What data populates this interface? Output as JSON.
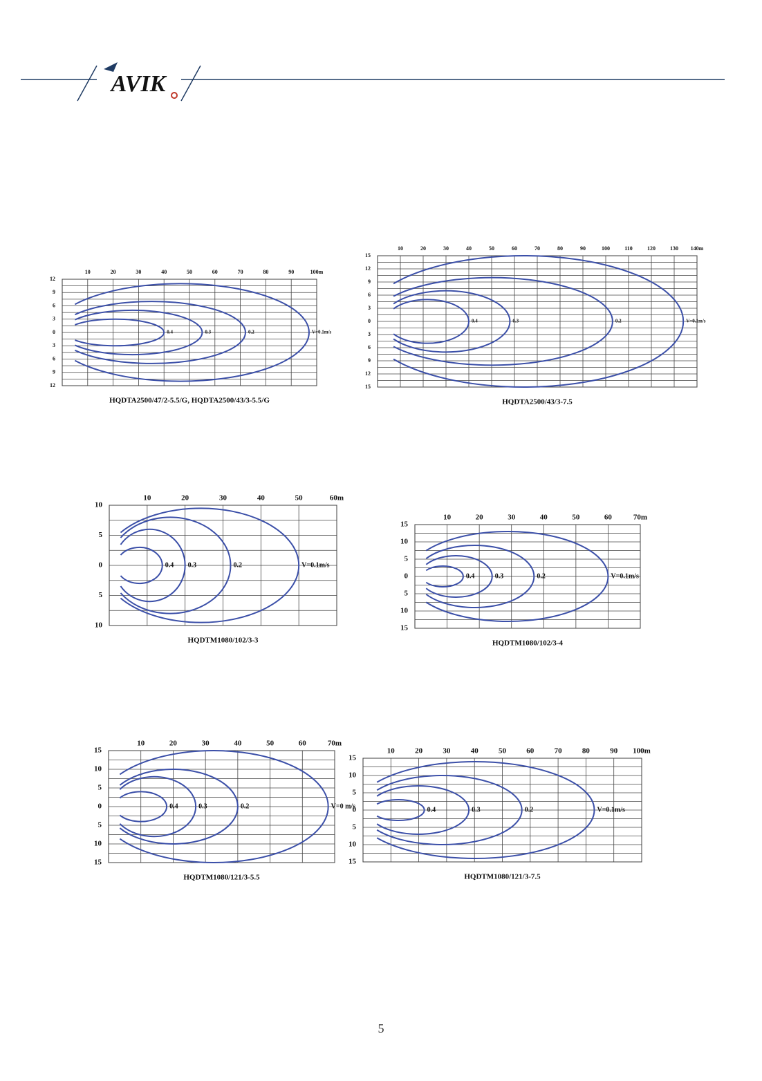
{
  "header": {
    "logo": "AVIK"
  },
  "charts": [
    {
      "caption": "HQDTA2500/47/2-5.5/G, HQDTA2500/43/3-5.5/G",
      "xlim": [
        0,
        100
      ],
      "ylim": [
        -12,
        12
      ],
      "xticks": [
        10,
        20,
        30,
        40,
        50,
        60,
        70,
        80,
        90,
        {
          "value": 100,
          "label": "100m"
        }
      ],
      "yticks": [
        12,
        9,
        6,
        3,
        0,
        {
          "value": -3,
          "label": "3"
        },
        {
          "value": -6,
          "label": "6"
        },
        {
          "value": -9,
          "label": "9"
        },
        {
          "value": -12,
          "label": "12"
        }
      ],
      "contours": [
        {
          "label": "0.4",
          "reach": 40,
          "spread": 3
        },
        {
          "label": "0.3",
          "reach": 55,
          "spread": 5
        },
        {
          "label": "0.2",
          "reach": 72,
          "spread": 7
        },
        {
          "label": "V=0.1m/s",
          "reach": 97,
          "spread": 11
        }
      ]
    },
    {
      "caption": "HQDTA2500/43/3-7.5",
      "xlim": [
        0,
        140
      ],
      "ylim": [
        -15,
        15
      ],
      "xticks": [
        10,
        20,
        30,
        40,
        50,
        60,
        70,
        80,
        90,
        100,
        110,
        120,
        130,
        {
          "value": 140,
          "label": "140m"
        }
      ],
      "yticks": [
        15,
        12,
        9,
        6,
        3,
        0,
        {
          "value": -3,
          "label": "3"
        },
        {
          "value": -6,
          "label": "6"
        },
        {
          "value": -9,
          "label": "9"
        },
        {
          "value": -12,
          "label": "12"
        },
        {
          "value": -15,
          "label": "15"
        }
      ],
      "contours": [
        {
          "label": "0.4",
          "reach": 40,
          "spread": 5
        },
        {
          "label": "0.3",
          "reach": 58,
          "spread": 7
        },
        {
          "label": "0.2",
          "reach": 103,
          "spread": 10
        },
        {
          "label": "V=0.1m/s",
          "reach": 134,
          "spread": 15
        }
      ]
    },
    {
      "caption": "HQDTM1080/102/3-3",
      "xlim": [
        0,
        60
      ],
      "ylim": [
        -10,
        10
      ],
      "xticks": [
        10,
        20,
        30,
        40,
        50,
        {
          "value": 60,
          "label": "60m"
        }
      ],
      "yticks": [
        10,
        5,
        0,
        {
          "value": -5,
          "label": "5"
        },
        {
          "value": -10,
          "label": "10"
        }
      ],
      "contours": [
        {
          "label": "0.4",
          "reach": 14,
          "spread": 3
        },
        {
          "label": "0.3",
          "reach": 20,
          "spread": 6
        },
        {
          "label": "0.2",
          "reach": 32,
          "spread": 8
        },
        {
          "label": "V=0.1m/s",
          "reach": 50,
          "spread": 9.5
        }
      ]
    },
    {
      "caption": "HQDTM1080/102/3-4",
      "xlim": [
        0,
        70
      ],
      "ylim": [
        -15,
        15
      ],
      "xticks": [
        10,
        20,
        30,
        40,
        50,
        60,
        {
          "value": 70,
          "label": "70m"
        }
      ],
      "yticks": [
        15,
        10,
        5,
        0,
        {
          "value": -5,
          "label": "5"
        },
        {
          "value": -10,
          "label": "10"
        },
        {
          "value": -15,
          "label": "15"
        }
      ],
      "contours": [
        {
          "label": "0.4",
          "reach": 15,
          "spread": 3
        },
        {
          "label": "0.3",
          "reach": 24,
          "spread": 6
        },
        {
          "label": "0.2",
          "reach": 37,
          "spread": 9
        },
        {
          "label": "V=0.1m/s",
          "reach": 60,
          "spread": 13
        }
      ]
    },
    {
      "caption": "HQDTM1080/121/3-5.5",
      "xlim": [
        0,
        70
      ],
      "ylim": [
        -15,
        15
      ],
      "xticks": [
        10,
        20,
        30,
        40,
        50,
        60,
        {
          "value": 70,
          "label": "70m"
        }
      ],
      "yticks": [
        15,
        10,
        5,
        0,
        {
          "value": -5,
          "label": "5"
        },
        {
          "value": -10,
          "label": "10"
        },
        {
          "value": -15,
          "label": "15"
        }
      ],
      "contours": [
        {
          "label": "0.4",
          "reach": 18,
          "spread": 4
        },
        {
          "label": "0.3",
          "reach": 27,
          "spread": 8
        },
        {
          "label": "0.2",
          "reach": 40,
          "spread": 10
        },
        {
          "label": "V=0 m/s",
          "reach": 68,
          "spread": 15
        }
      ]
    },
    {
      "caption": "HQDTM1080/121/3-7.5",
      "xlim": [
        0,
        100
      ],
      "ylim": [
        -15,
        15
      ],
      "xticks": [
        10,
        20,
        30,
        40,
        50,
        60,
        70,
        80,
        90,
        {
          "value": 100,
          "label": "100m"
        }
      ],
      "yticks": [
        15,
        10,
        5,
        0,
        {
          "value": -5,
          "label": "5"
        },
        {
          "value": -10,
          "label": "10"
        },
        {
          "value": -15,
          "label": "15"
        }
      ],
      "contours": [
        {
          "label": "0.4",
          "reach": 22,
          "spread": 3
        },
        {
          "label": "0.3",
          "reach": 38,
          "spread": 7
        },
        {
          "label": "0.2",
          "reach": 57,
          "spread": 10
        },
        {
          "label": "V=0.1m/s",
          "reach": 83,
          "spread": 14
        }
      ]
    }
  ],
  "page_number": "5"
}
